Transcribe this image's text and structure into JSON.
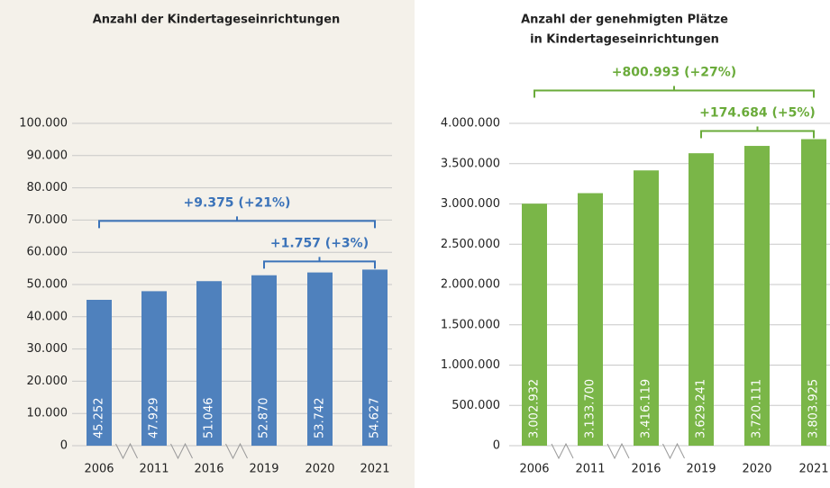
{
  "chart_data": [
    {
      "type": "bar",
      "title": [
        "Anzahl der Kindertageseinrichtungen"
      ],
      "categories": [
        "2006",
        "2011",
        "2016",
        "2019",
        "2020",
        "2021"
      ],
      "values": [
        45252,
        47929,
        51046,
        52870,
        53742,
        54627
      ],
      "value_labels": [
        "45.252",
        "47.929",
        "51.046",
        "52.870",
        "53.742",
        "54.627"
      ],
      "color": "#4f81bd",
      "annotation_color": "#3b73b9",
      "ylim": [
        0,
        100000
      ],
      "yticks": [
        0,
        {
          "value": 10000,
          "label": "10.000"
        },
        {
          "value": 20000,
          "label": "20.000"
        },
        {
          "value": 30000,
          "label": "30.000"
        },
        {
          "value": 40000,
          "label": "40.000"
        },
        {
          "value": 50000,
          "label": "50.000"
        },
        {
          "value": 60000,
          "label": "60.000"
        },
        {
          "value": 70000,
          "label": "70.000"
        },
        {
          "value": 80000,
          "label": "80.000"
        },
        {
          "value": 90000,
          "label": "90.000"
        },
        {
          "value": 100000,
          "label": "100.000"
        }
      ],
      "grid": true,
      "annotations": [
        {
          "text": "+9.375 (+21%)",
          "span": [
            "2006",
            "2021"
          ]
        },
        {
          "text": "+1.757 (+3%)",
          "span": [
            "2019",
            "2021"
          ]
        }
      ]
    },
    {
      "type": "bar",
      "title": [
        "Anzahl der genehmigten Plätze",
        "in Kindertageseinrichtungen"
      ],
      "categories": [
        "2006",
        "2011",
        "2016",
        "2019",
        "2020",
        "2021"
      ],
      "values": [
        3002932,
        3133700,
        3416119,
        3629241,
        3720111,
        3803925
      ],
      "value_labels": [
        "3.002.932",
        "3.133.700",
        "3.416.119",
        "3.629.241",
        "3.720.111",
        "3.803.925"
      ],
      "color": "#7ab648",
      "annotation_color": "#6aab3a",
      "ylim": [
        0,
        4000000
      ],
      "yticks": [
        0,
        {
          "value": 500000,
          "label": "500.000"
        },
        {
          "value": 1000000,
          "label": "1.000.000"
        },
        {
          "value": 1500000,
          "label": "1.500.000"
        },
        {
          "value": 2000000,
          "label": "2.000.000"
        },
        {
          "value": 2500000,
          "label": "2.500.000"
        },
        {
          "value": 3000000,
          "label": "3.000.000"
        },
        {
          "value": 3500000,
          "label": "3.500.000"
        },
        {
          "value": 4000000,
          "label": "4.000.000"
        }
      ],
      "grid": true,
      "annotations": [
        {
          "text": "+800.993 (+27%)",
          "span": [
            "2006",
            "2021"
          ]
        },
        {
          "text": "+174.684 (+5%)",
          "span": [
            "2019",
            "2021"
          ]
        }
      ]
    }
  ]
}
